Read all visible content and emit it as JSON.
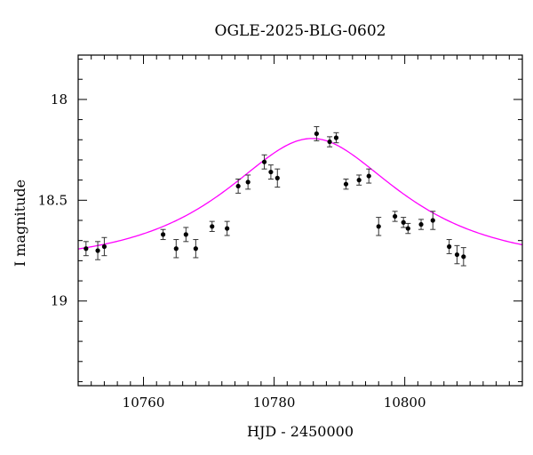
{
  "chart_data": {
    "type": "scatter",
    "title": "OGLE-2025-BLG-0602",
    "xlabel": "HJD - 2450000",
    "ylabel": "I magnitude",
    "xlim": [
      10750,
      10818
    ],
    "ylim": [
      19.42,
      17.78
    ],
    "y_inverted": true,
    "grid": false,
    "x_major_ticks": [
      10760,
      10780,
      10800
    ],
    "x_tick_labels": [
      "10760",
      "10780",
      "10800"
    ],
    "x_minor_step": 2,
    "y_major_ticks": [
      18,
      18.5,
      19
    ],
    "y_tick_labels": [
      "18",
      "18.5",
      "19"
    ],
    "y_minor_step": 0.1,
    "colors": {
      "points": "#000000",
      "model": "#ff00ff",
      "frame": "#000000"
    },
    "series": [
      {
        "type": "scatter",
        "with_error_bars": true,
        "x": [
          10751.2,
          10753.0,
          10754.0,
          10763.0,
          10765.0,
          10766.5,
          10768.0,
          10770.5,
          10772.8,
          10774.5,
          10776.0,
          10778.5,
          10779.5,
          10780.5,
          10786.5,
          10788.5,
          10789.5,
          10791.0,
          10793.0,
          10794.5,
          10796.0,
          10798.5,
          10799.8,
          10800.5,
          10802.5,
          10804.3,
          10806.8,
          10808.0,
          10809.0
        ],
        "y": [
          18.74,
          18.75,
          18.73,
          18.67,
          18.74,
          18.67,
          18.74,
          18.63,
          18.64,
          18.43,
          18.41,
          18.31,
          18.36,
          18.39,
          18.17,
          18.21,
          18.19,
          18.42,
          18.4,
          18.38,
          18.63,
          18.58,
          18.61,
          18.64,
          18.62,
          18.6,
          18.73,
          18.77,
          18.78
        ],
        "yerr": [
          0.035,
          0.045,
          0.045,
          0.025,
          0.045,
          0.035,
          0.045,
          0.025,
          0.035,
          0.035,
          0.035,
          0.035,
          0.035,
          0.045,
          0.035,
          0.025,
          0.025,
          0.025,
          0.025,
          0.035,
          0.045,
          0.025,
          0.025,
          0.025,
          0.025,
          0.045,
          0.035,
          0.045,
          0.045
        ]
      },
      {
        "type": "line",
        "model": "microlensing",
        "t0": 10785.8,
        "tE": 20,
        "u0": 0.65,
        "baseline_mag": 18.815
      }
    ]
  }
}
